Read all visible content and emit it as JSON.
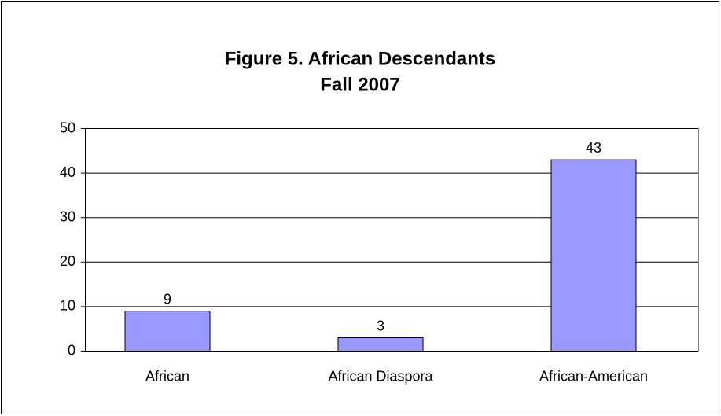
{
  "chart_data": {
    "type": "bar",
    "title": "Figure 5. African Descendants",
    "subtitle": "Fall 2007",
    "categories": [
      "African",
      "African Diaspora",
      "African-American"
    ],
    "values": [
      9,
      3,
      43
    ],
    "color": "#9999ff",
    "ylim": [
      0,
      50
    ],
    "yticks": [
      0,
      10,
      20,
      30,
      40,
      50
    ],
    "grid": true
  }
}
